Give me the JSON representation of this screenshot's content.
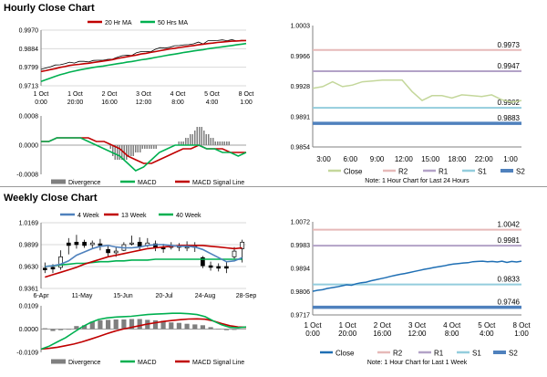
{
  "sections": {
    "hourly_title": "Hourly Close Chart",
    "weekly_title": "Weekly Close Chart"
  },
  "colors": {
    "ma_short": "#c00000",
    "ma_long": "#00b050",
    "week4": "#4f81bd",
    "week13": "#c00000",
    "week40": "#00b050",
    "divergence": "#7f7f7f",
    "macd": "#00b050",
    "signal": "#c00000",
    "close_hourly": "#c4d79b",
    "close_weekly": "#1f6fb4",
    "r2": "#e6b9b8",
    "r1": "#b3a2c7",
    "s1": "#93cddd",
    "s2": "#4f81bd"
  },
  "chart_data": [
    {
      "id": "hourly-price",
      "type": "line",
      "legend": [
        "20 Hr MA",
        "50 Hrs MA"
      ],
      "yticks": [
        "0.9970",
        "0.9884",
        "0.9799",
        "0.9713"
      ],
      "ylim": [
        0.9713,
        0.997
      ],
      "xticks": [
        [
          "1 Oct",
          "0:00"
        ],
        [
          "1 Oct",
          "20:00"
        ],
        [
          "2 Oct",
          "16:00"
        ],
        [
          "3 Oct",
          "12:00"
        ],
        [
          "4 Oct",
          "8:00"
        ],
        [
          "5 Oct",
          "4:00"
        ],
        [
          "8 Oct",
          "1:00"
        ]
      ],
      "price": [
        0.9789,
        0.9795,
        0.9801,
        0.9809,
        0.981,
        0.9815,
        0.9822,
        0.9818,
        0.9826,
        0.9826,
        0.9823,
        0.983,
        0.9831,
        0.9831,
        0.9835,
        0.9836,
        0.9845,
        0.9852,
        0.9854,
        0.9853,
        0.9866,
        0.9871,
        0.9871,
        0.987,
        0.9882,
        0.9889,
        0.9887,
        0.9891,
        0.9898,
        0.9899,
        0.9902,
        0.9903,
        0.9907,
        0.9915,
        0.9906,
        0.9921,
        0.9921,
        0.9922,
        0.9925,
        0.9921,
        0.9926,
        0.992,
        0.9923,
        0.9922
      ],
      "ma20": [
        0.9779,
        0.9783,
        0.9788,
        0.9792,
        0.9798,
        0.9802,
        0.9807,
        0.981,
        0.9812,
        0.9815,
        0.9817,
        0.9821,
        0.9824,
        0.9827,
        0.983,
        0.9834,
        0.9839,
        0.9843,
        0.9847,
        0.9851,
        0.9855,
        0.986,
        0.9863,
        0.9867,
        0.9871,
        0.9875,
        0.9879,
        0.9883,
        0.9886,
        0.989,
        0.9893,
        0.9896,
        0.9899,
        0.9902,
        0.9905,
        0.9908,
        0.991,
        0.9913,
        0.9915,
        0.9917,
        0.9919,
        0.992,
        0.9921,
        0.9922
      ],
      "ma50": [
        0.9733,
        0.9741,
        0.9749,
        0.9757,
        0.9764,
        0.977,
        0.9776,
        0.9781,
        0.9786,
        0.979,
        0.9794,
        0.9798,
        0.9801,
        0.9804,
        0.9808,
        0.9811,
        0.9815,
        0.9818,
        0.9822,
        0.9825,
        0.9829,
        0.9833,
        0.9836,
        0.984,
        0.9844,
        0.9848,
        0.9852,
        0.9856,
        0.9859,
        0.9863,
        0.9867,
        0.987,
        0.9874,
        0.9877,
        0.988,
        0.9884,
        0.9887,
        0.989,
        0.9893,
        0.9896,
        0.9899,
        0.9902,
        0.9905,
        0.9908
      ]
    },
    {
      "id": "hourly-macd",
      "type": "bar",
      "yticks": [
        "0.0008",
        "0.0000",
        "-0.0008"
      ],
      "ylim": [
        -0.0008,
        0.0008
      ],
      "legend": [
        "Divergence",
        "MACD",
        "MACD Signal Line"
      ],
      "divergence": [
        0,
        0,
        0,
        0,
        0,
        0,
        0,
        0,
        0,
        0,
        0,
        0,
        0,
        0,
        0,
        0,
        0,
        0,
        0,
        0,
        0,
        0,
        0,
        0,
        0,
        0,
        0,
        0,
        0,
        0,
        -0.0001,
        -0.0003,
        -0.0004,
        -0.0004,
        -0.0004,
        -0.0004,
        -0.0004,
        -0.0004,
        -0.0003,
        -0.0003,
        -0.0003,
        -0.0002,
        -0.0002,
        -0.0002,
        -0.0001,
        -0.0001,
        -0.0001,
        -0.0001,
        -0.0001,
        -0.0001,
        -0.0001,
        0,
        0,
        0,
        0,
        0,
        0,
        0,
        0,
        0,
        0.0001,
        0.0001,
        0.0001,
        0.0002,
        0.0002,
        0.0003,
        0.0003,
        0.0004,
        0.0005,
        0.0005,
        0.0005,
        0.0004,
        0.0003,
        0.0003,
        0.0002,
        0.0002,
        0.0001,
        0.0001,
        0.0001,
        0.0001,
        0.0001,
        0.0001,
        0.0001,
        0,
        0,
        0,
        0,
        0,
        0,
        0
      ],
      "macd": [
        0.0001,
        0.0001,
        0.0002,
        0.0002,
        0.0002,
        0.0002,
        0.0001,
        0,
        -0.0001,
        -0.0002,
        -0.0003,
        -0.0005,
        -0.0007,
        -0.0006,
        -0.0004,
        -0.0002,
        -0.0001,
        0,
        0,
        0,
        0,
        -0.0001,
        -0.0001,
        -0.0002,
        -0.0002,
        -0.0003,
        -0.0002
      ],
      "signal": [
        0.0001,
        0.0001,
        0.0002,
        0.0002,
        0.0002,
        0.0002,
        0.0002,
        0.0001,
        0.0001,
        0,
        -0.0001,
        -0.0003,
        -0.0004,
        -0.0005,
        -0.0005,
        -0.0004,
        -0.0003,
        -0.0002,
        -0.0001,
        -0.0001,
        0,
        -0.0001,
        -0.0001,
        -0.0001,
        -0.0002,
        -0.0002,
        -0.0002
      ]
    },
    {
      "id": "hourly-levels",
      "type": "line",
      "yticks": [
        "1.0003",
        "0.9966",
        "0.9928",
        "0.9891",
        "0.9854"
      ],
      "ylim": [
        0.9854,
        1.0003
      ],
      "xticks": [
        "3:00",
        "6:00",
        "9:00",
        "12:00",
        "15:00",
        "18:00",
        "22:00",
        "1:00"
      ],
      "close": [
        0.9926,
        0.9928,
        0.9934,
        0.9928,
        0.993,
        0.9934,
        0.9935,
        0.9936,
        0.9936,
        0.9936,
        0.9922,
        0.9911,
        0.9917,
        0.9917,
        0.9914,
        0.9918,
        0.9917,
        0.9916,
        0.9918,
        0.9912,
        0.9909,
        0.9911
      ],
      "levels": [
        {
          "name": "R2",
          "value": 0.9973,
          "label": "0.9973"
        },
        {
          "name": "R1",
          "value": 0.9947,
          "label": "0.9947"
        },
        {
          "name": "S1",
          "value": 0.9902,
          "label": "0.9902"
        },
        {
          "name": "S2",
          "value": 0.9883,
          "label": "0.9883"
        }
      ],
      "legend": [
        "Close",
        "R2",
        "R1",
        "S1",
        "S2"
      ],
      "note": "Note: 1 Hour Chart for Last 24 Hours"
    },
    {
      "id": "weekly-price",
      "type": "line",
      "legend": [
        "4 Week",
        "13 Week",
        "40 Week"
      ],
      "yticks": [
        "1.0169",
        "0.9899",
        "0.9630",
        "0.9361"
      ],
      "ylim": [
        0.9361,
        1.0169
      ],
      "xticks": [
        "6-Apr",
        "11-May",
        "15-Jun",
        "20-Jul",
        "24-Aug",
        "28-Sep"
      ],
      "candles": [
        {
          "o": 0.961,
          "c": 0.959,
          "h": 0.968,
          "l": 0.955
        },
        {
          "o": 0.962,
          "c": 0.96,
          "h": 0.966,
          "l": 0.955
        },
        {
          "o": 0.962,
          "c": 0.975,
          "h": 0.983,
          "l": 0.959
        },
        {
          "o": 0.992,
          "c": 0.989,
          "h": 0.998,
          "l": 0.978
        },
        {
          "o": 0.993,
          "c": 0.99,
          "h": 1.002,
          "l": 0.985
        },
        {
          "o": 0.993,
          "c": 0.989,
          "h": 0.996,
          "l": 0.986
        },
        {
          "o": 0.99,
          "c": 0.992,
          "h": 0.995,
          "l": 0.986
        },
        {
          "o": 0.991,
          "c": 0.989,
          "h": 0.997,
          "l": 0.983
        },
        {
          "o": 0.984,
          "c": 0.98,
          "h": 0.989,
          "l": 0.975
        },
        {
          "o": 0.98,
          "c": 0.982,
          "h": 0.987,
          "l": 0.975
        },
        {
          "o": 0.983,
          "c": 0.99,
          "h": 0.993,
          "l": 0.982
        },
        {
          "o": 0.991,
          "c": 0.992,
          "h": 1.001,
          "l": 0.989
        },
        {
          "o": 0.993,
          "c": 0.988,
          "h": 0.999,
          "l": 0.984
        },
        {
          "o": 0.989,
          "c": 0.992,
          "h": 0.998,
          "l": 0.987
        },
        {
          "o": 0.991,
          "c": 0.986,
          "h": 0.995,
          "l": 0.982
        },
        {
          "o": 0.986,
          "c": 0.985,
          "h": 0.991,
          "l": 0.98
        },
        {
          "o": 0.988,
          "c": 0.988,
          "h": 0.993,
          "l": 0.984
        },
        {
          "o": 0.987,
          "c": 0.988,
          "h": 0.992,
          "l": 0.982
        },
        {
          "o": 0.987,
          "c": 0.987,
          "h": 0.994,
          "l": 0.982
        },
        {
          "o": 0.988,
          "c": 0.988,
          "h": 0.993,
          "l": 0.981
        },
        {
          "o": 0.974,
          "c": 0.964,
          "h": 0.976,
          "l": 0.961
        },
        {
          "o": 0.964,
          "c": 0.962,
          "h": 0.969,
          "l": 0.958
        },
        {
          "o": 0.963,
          "c": 0.961,
          "h": 0.967,
          "l": 0.957
        },
        {
          "o": 0.963,
          "c": 0.961,
          "h": 0.969,
          "l": 0.955
        },
        {
          "o": 0.975,
          "c": 0.982,
          "h": 0.987,
          "l": 0.972
        },
        {
          "o": 0.985,
          "c": 0.993,
          "h": 0.996,
          "l": 0.968
        }
      ],
      "wk4": [
        0.963,
        0.964,
        0.966,
        0.97,
        0.977,
        0.981,
        0.985,
        0.988,
        0.989,
        0.987,
        0.986,
        0.986,
        0.987,
        0.989,
        0.99,
        0.99,
        0.989,
        0.988,
        0.988,
        0.987,
        0.984,
        0.979,
        0.974,
        0.969,
        0.97,
        0.974
      ],
      "wk13": [
        0.95,
        0.953,
        0.956,
        0.959,
        0.962,
        0.966,
        0.969,
        0.972,
        0.975,
        0.977,
        0.979,
        0.981,
        0.983,
        0.985,
        0.986,
        0.987,
        0.988,
        0.989,
        0.989,
        0.989,
        0.989,
        0.988,
        0.987,
        0.986,
        0.985,
        0.986
      ],
      "wk40": [
        0.963,
        0.964,
        0.965,
        0.966,
        0.967,
        0.967,
        0.968,
        0.969,
        0.969,
        0.97,
        0.97,
        0.971,
        0.971,
        0.971,
        0.972,
        0.972,
        0.972,
        0.972,
        0.972,
        0.972,
        0.972,
        0.972,
        0.972,
        0.972,
        0.972,
        0.972
      ]
    },
    {
      "id": "weekly-macd",
      "type": "bar",
      "yticks": [
        "0.0109",
        "0.0000",
        "-0.0109"
      ],
      "ylim": [
        -0.0109,
        0.0109
      ],
      "legend": [
        "Divergence",
        "MACD",
        "MACD Signal Line"
      ],
      "divergence": [
        0.0004,
        -0.0009,
        -0.0005,
        -0.0003,
        0.0014,
        0.0018,
        0.0035,
        0.0041,
        0.0043,
        0.0045,
        0.0045,
        0.0047,
        0.0047,
        0.0043,
        0.0041,
        0.0039,
        0.0031,
        0.0029,
        0.0025,
        0.0022,
        0.0018,
        0.0009,
        -0.0002,
        -0.0005,
        -0.0004,
        0
      ],
      "macd": [
        -0.0094,
        -0.008,
        -0.006,
        -0.004,
        -0.0015,
        0.001,
        0.003,
        0.0045,
        0.0052,
        0.0056,
        0.0058,
        0.006,
        0.0064,
        0.0068,
        0.007,
        0.0072,
        0.0074,
        0.0074,
        0.0072,
        0.0068,
        0.0058,
        0.0038,
        0.002,
        0.0008,
        0.0006,
        0.001
      ],
      "signal": [
        -0.0094,
        -0.009,
        -0.0085,
        -0.0078,
        -0.007,
        -0.006,
        -0.0048,
        -0.0035,
        -0.0022,
        -0.001,
        0,
        0.0008,
        0.0016,
        0.0024,
        0.003,
        0.0036,
        0.004,
        0.0044,
        0.0047,
        0.0048,
        0.0046,
        0.0038,
        0.0026,
        0.0016,
        0.001,
        0.0008
      ]
    },
    {
      "id": "weekly-levels",
      "type": "line",
      "yticks": [
        "1.0072",
        "0.9983",
        "0.9894",
        "0.9806",
        "0.9717"
      ],
      "ylim": [
        0.9717,
        1.0072
      ],
      "xticks": [
        [
          "1 Oct",
          "0:00"
        ],
        [
          "1 Oct",
          "20:00"
        ],
        [
          "2 Oct",
          "16:00"
        ],
        [
          "3 Oct",
          "12:00"
        ],
        [
          "4 Oct",
          "8:00"
        ],
        [
          "5 Oct",
          "4:00"
        ],
        [
          "8 Oct",
          "1:00"
        ]
      ],
      "close": [
        0.9807,
        0.9811,
        0.9813,
        0.9818,
        0.9821,
        0.9824,
        0.9828,
        0.9832,
        0.983,
        0.9836,
        0.984,
        0.9842,
        0.9847,
        0.9851,
        0.9855,
        0.9859,
        0.9864,
        0.9868,
        0.9872,
        0.9875,
        0.9879,
        0.9883,
        0.9887,
        0.9891,
        0.9894,
        0.9898,
        0.9901,
        0.9904,
        0.9908,
        0.9911,
        0.9913,
        0.9915,
        0.9916,
        0.992,
        0.9921,
        0.9922,
        0.992,
        0.9921,
        0.9919,
        0.9922,
        0.9917,
        0.9921,
        0.9919,
        0.9922
      ],
      "levels": [
        {
          "name": "R2",
          "value": 1.0042,
          "label": "1.0042"
        },
        {
          "name": "R1",
          "value": 0.9981,
          "label": "0.9981"
        },
        {
          "name": "S1",
          "value": 0.9833,
          "label": "0.9833"
        },
        {
          "name": "S2",
          "value": 0.9746,
          "label": "0.9746"
        }
      ],
      "legend": [
        "Close",
        "R2",
        "R1",
        "S1",
        "S2"
      ],
      "note": "Note: 1 Hour Chart for Last 1 Week"
    }
  ]
}
